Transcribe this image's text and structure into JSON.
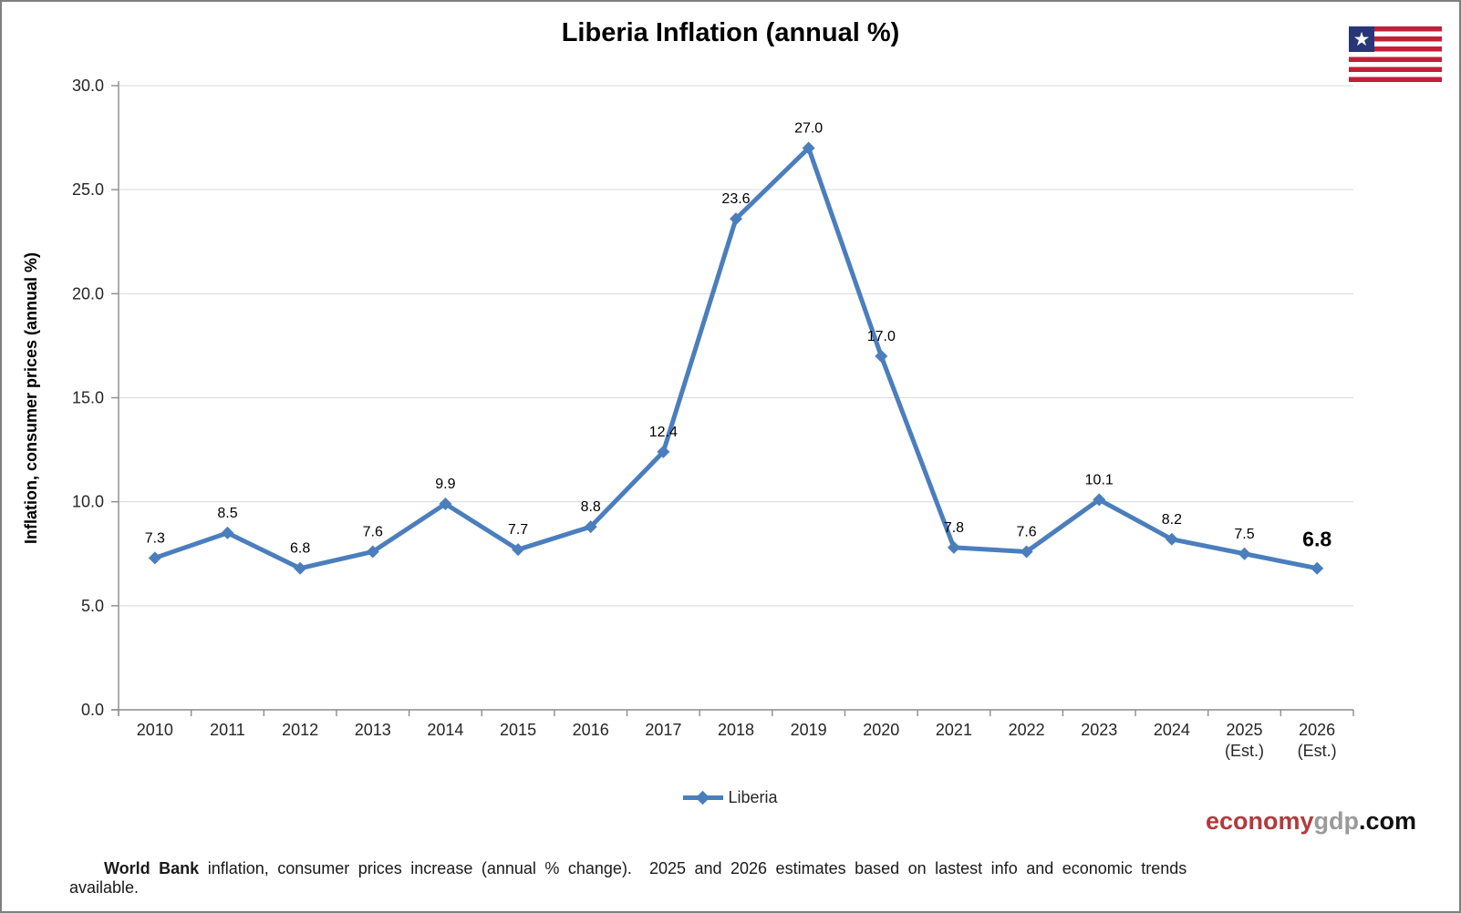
{
  "title": "Liberia Inflation (annual %)",
  "flag": {
    "name": "Liberia flag",
    "star": "★",
    "red": "#c22039",
    "white": "#ffffff",
    "blue": "#283577"
  },
  "legend": {
    "label": "Liberia"
  },
  "watermark": {
    "economy": "economy",
    "gdp": "gdp",
    "com": ".com",
    "economy_color": "#b23a3c",
    "gdp_color": "#9a9a9a",
    "com_color": "#111111"
  },
  "footer": {
    "source": "World Bank",
    "text": " inflation, consumer prices increase (annual % change).  2025 and 2026 estimates based on lastest info and economic trends available."
  },
  "chart_data": {
    "type": "line",
    "title": "Liberia Inflation (annual %)",
    "ylabel": "Inflation, consumer prices (annual %)",
    "xlabel": "",
    "categories": [
      "2010",
      "2011",
      "2012",
      "2013",
      "2014",
      "2015",
      "2016",
      "2017",
      "2018",
      "2019",
      "2020",
      "2021",
      "2022",
      "2023",
      "2024",
      "2025 (Est.)",
      "2026 (Est.)"
    ],
    "series": [
      {
        "name": "Liberia",
        "color": "#4a7ebd",
        "values": [
          7.3,
          8.5,
          6.8,
          7.6,
          9.9,
          7.7,
          8.8,
          12.4,
          23.6,
          27.0,
          17.0,
          7.8,
          7.6,
          10.1,
          8.2,
          7.5,
          6.8
        ]
      }
    ],
    "ylim": [
      0,
      30
    ],
    "ytick_step": 5,
    "ytick_labels": [
      "0.0",
      "5.0",
      "10.0",
      "15.0",
      "20.0",
      "25.0",
      "30.0"
    ],
    "grid": true,
    "legend_position": "bottom",
    "data_labels": true,
    "last_label_bold": true,
    "axis_color": "#8c8c8c",
    "grid_color": "#d9d9d9",
    "label_color": "#262626"
  }
}
